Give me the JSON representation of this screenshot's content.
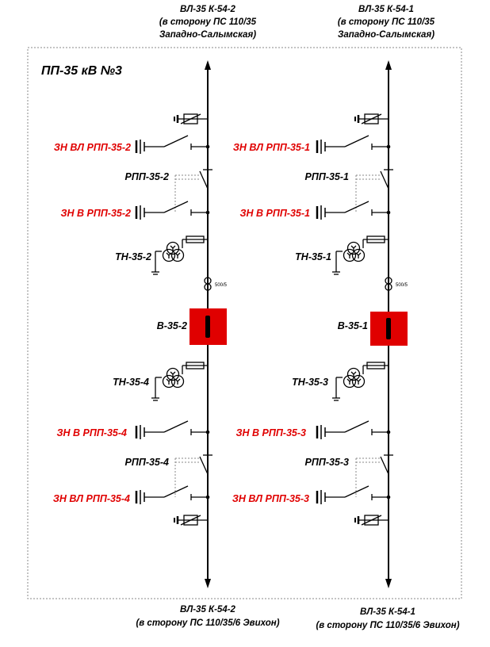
{
  "title": "ПП-35 кВ №3",
  "colors": {
    "breaker": "#e00000",
    "label_red": "#e00000"
  },
  "top": {
    "left": {
      "line": "ВЛ-35 К-54-2",
      "dir1": "(в сторону ПС 110/35",
      "dir2": "Западно-Салымская)"
    },
    "right": {
      "line": "ВЛ-35 К-54-1",
      "dir1": "(в сторону ПС 110/35",
      "dir2": "Западно-Салымская)"
    }
  },
  "bottom": {
    "left": {
      "line": "ВЛ-35 К-54-2",
      "dir": "(в сторону ПС 110/35/6 Эвихон)"
    },
    "right": {
      "line": "ВЛ-35 К-54-1",
      "dir": "(в сторону ПС 110/35/6 Эвихон)"
    }
  },
  "left": {
    "zn_vl_top": "ЗН ВЛ РПП-35-2",
    "rpp_top": "РПП-35-2",
    "zn_v_top": "ЗН В РПП-35-2",
    "tn_top": "ТН-35-2",
    "ct_ratio": "500/5",
    "breaker": "В-35-2",
    "tn_bottom": "ТН-35-4",
    "zn_v_bottom": "ЗН В РПП-35-4",
    "rpp_bottom": "РПП-35-4",
    "zn_vl_bottom": "ЗН ВЛ РПП-35-4"
  },
  "right": {
    "zn_vl_top": "ЗН ВЛ РПП-35-1",
    "rpp_top": "РПП-35-1",
    "zn_v_top": "ЗН В РПП-35-1",
    "tn_top": "ТН-35-1",
    "ct_ratio": "500/5",
    "breaker": "В-35-1",
    "tn_bottom": "ТН-35-3",
    "zn_v_bottom": "ЗН В РПП-35-3",
    "rpp_bottom": "РПП-35-3",
    "zn_vl_bottom": "ЗН ВЛ РПП-35-3"
  }
}
